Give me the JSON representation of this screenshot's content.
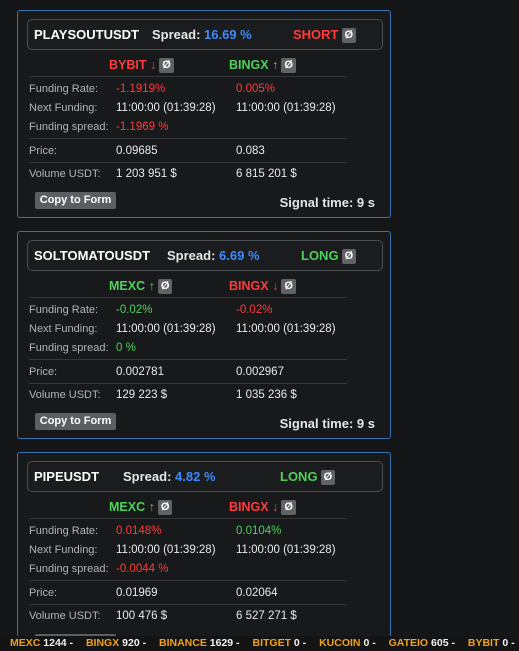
{
  "signals": [
    {
      "symbol": "PLAYSOUTUSDT",
      "spread_label": "Spread:",
      "spread_value": "16.69 %",
      "direction": "SHORT",
      "direction_badge": "Ø",
      "left_exchange": "BYBIT",
      "left_arrow": "↓",
      "left_badge": "Ø",
      "right_exchange": "BINGX",
      "right_arrow": "↑",
      "right_badge": "Ø",
      "funding_rate_label": "Funding Rate:",
      "funding_rate_left": "-1.1919%",
      "funding_rate_right": "0.005%",
      "next_funding_label": "Next Funding:",
      "next_funding_left": "11:00:00 (01:39:28)",
      "next_funding_right": "11:00:00 (01:39:28)",
      "funding_spread_label": "Funding spread:",
      "funding_spread": "-1.1969 %",
      "price_label": "Price:",
      "price_left": "0.09685",
      "price_right": "0.083",
      "volume_label": "Volume USDT:",
      "volume_left": "1 203 951 $",
      "volume_right": "6 815 201 $",
      "copy_button": "Copy to Form",
      "signal_time": "Signal time: 9 s"
    },
    {
      "symbol": "SOLTOMATOUSDT",
      "spread_label": "Spread:",
      "spread_value": "6.69 %",
      "direction": "LONG",
      "direction_badge": "Ø",
      "left_exchange": "MEXC",
      "left_arrow": "↑",
      "left_badge": "Ø",
      "right_exchange": "BINGX",
      "right_arrow": "↓",
      "right_badge": "Ø",
      "funding_rate_label": "Funding Rate:",
      "funding_rate_left": "-0.02%",
      "funding_rate_right": "-0.02%",
      "next_funding_label": "Next Funding:",
      "next_funding_left": "11:00:00 (01:39:28)",
      "next_funding_right": "11:00:00 (01:39:28)",
      "funding_spread_label": "Funding spread:",
      "funding_spread": "0 %",
      "price_label": "Price:",
      "price_left": "0.002781",
      "price_right": "0.002967",
      "volume_label": "Volume USDT:",
      "volume_left": "129 223 $",
      "volume_right": "1 035 236 $",
      "copy_button": "Copy to Form",
      "signal_time": "Signal time: 9 s"
    },
    {
      "symbol": "PIPEUSDT",
      "spread_label": "Spread:",
      "spread_value": "4.82 %",
      "direction": "LONG",
      "direction_badge": "Ø",
      "left_exchange": "MEXC",
      "left_arrow": "↑",
      "left_badge": "Ø",
      "right_exchange": "BINGX",
      "right_arrow": "↓",
      "right_badge": "Ø",
      "funding_rate_label": "Funding Rate:",
      "funding_rate_left": "0.0148%",
      "funding_rate_right": "0.0104%",
      "next_funding_label": "Next Funding:",
      "next_funding_left": "11:00:00 (01:39:28)",
      "next_funding_right": "11:00:00 (01:39:28)",
      "funding_spread_label": "Funding spread:",
      "funding_spread": "-0.0044 %",
      "price_label": "Price:",
      "price_left": "0.01969",
      "price_right": "0.02064",
      "volume_label": "Volume USDT:",
      "volume_left": "100 476 $",
      "volume_right": "6 527 271 $"
    }
  ],
  "ticker": [
    {
      "exchange": "MEXC",
      "count": "1244 -"
    },
    {
      "exchange": "BINGX",
      "count": "920 -"
    },
    {
      "exchange": "BINANCE",
      "count": "1629 -"
    },
    {
      "exchange": "BITGET",
      "count": "0 -"
    },
    {
      "exchange": "KUCOIN",
      "count": "0 -"
    },
    {
      "exchange": "GATEIO",
      "count": "605 -"
    },
    {
      "exchange": "BYBIT",
      "count": "0 -"
    }
  ],
  "colors": {
    "card_border": "#3b6fb3",
    "spread_blue": "#3d8bfd",
    "negative_red": "#ff3b3b",
    "positive_green": "#4fd15a",
    "ticker_orange": "#f0a21c"
  }
}
